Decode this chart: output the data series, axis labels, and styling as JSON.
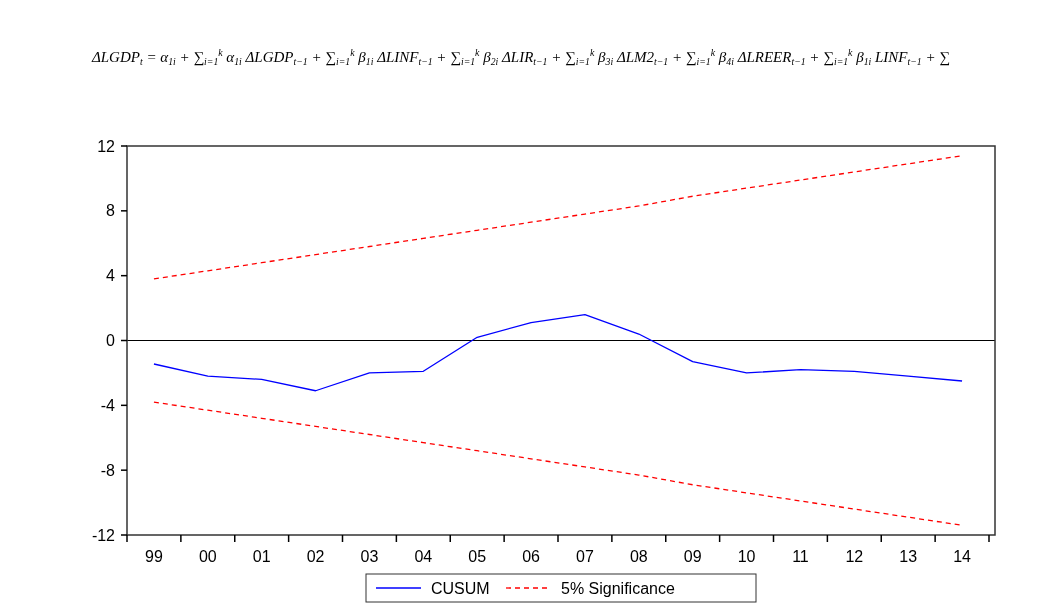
{
  "chart_data": {
    "type": "line",
    "title": "ΔLGDP$_{t}$ = α$_{1i}$ + ∑$_{i=1}$$^{k}$ α$_{1i}$ ΔLGDP$_{t−1}$ + ∑$_{i=1}$$^{k}$ β$_{1i}$ ΔLINF$_{t−1}$ + ∑$_{i=1}$$^{k}$ β$_{2i}$ ΔLIR$_{t−1}$ + ∑$_{i=1}$$^{k}$ β$_{3i}$ ΔLM2$_{t−1}$ + ∑$_{i=1}$$^{k}$ β$_{4i}$ ΔLREER$_{t−1}$ + ∑$_{i=1}$$^{k}$ β$_{1i}$ LINF$_{t−1}$ + ∑",
    "categories": [
      "99",
      "00",
      "01",
      "02",
      "03",
      "04",
      "05",
      "06",
      "07",
      "08",
      "09",
      "10",
      "11",
      "12",
      "13",
      "14"
    ],
    "series": [
      {
        "name": "CUSUM",
        "color": "#0000ff",
        "line_style": "solid",
        "values": [
          -1.45,
          -2.2,
          -2.4,
          -3.1,
          -2.0,
          -1.9,
          0.2,
          1.1,
          1.6,
          0.4,
          -1.3,
          -2.0,
          -1.8,
          -1.9,
          -2.2,
          -2.5
        ]
      },
      {
        "name": "5% Significance",
        "color": "#ff0000",
        "line_style": "dashed",
        "values": [
          3.8,
          4.3,
          4.8,
          5.3,
          5.8,
          6.3,
          6.8,
          7.3,
          7.8,
          8.3,
          8.9,
          9.4,
          9.9,
          10.4,
          10.9,
          11.4
        ]
      },
      {
        "color": "#ff0000",
        "line_style": "dashed",
        "values": [
          -3.8,
          -4.3,
          -4.8,
          -5.3,
          -5.8,
          -6.3,
          -6.8,
          -7.3,
          -7.8,
          -8.3,
          -8.9,
          -9.4,
          -9.9,
          -10.4,
          -10.9,
          -11.4
        ]
      }
    ],
    "ylim": [
      -12,
      12
    ],
    "yticks": [
      -12,
      -8,
      -4,
      0,
      4,
      8,
      12
    ],
    "ref_lines": [
      {
        "axis": "y",
        "value": 0,
        "color": "#000000"
      }
    ],
    "grid": false,
    "legend": "bottom",
    "marker": "none"
  }
}
